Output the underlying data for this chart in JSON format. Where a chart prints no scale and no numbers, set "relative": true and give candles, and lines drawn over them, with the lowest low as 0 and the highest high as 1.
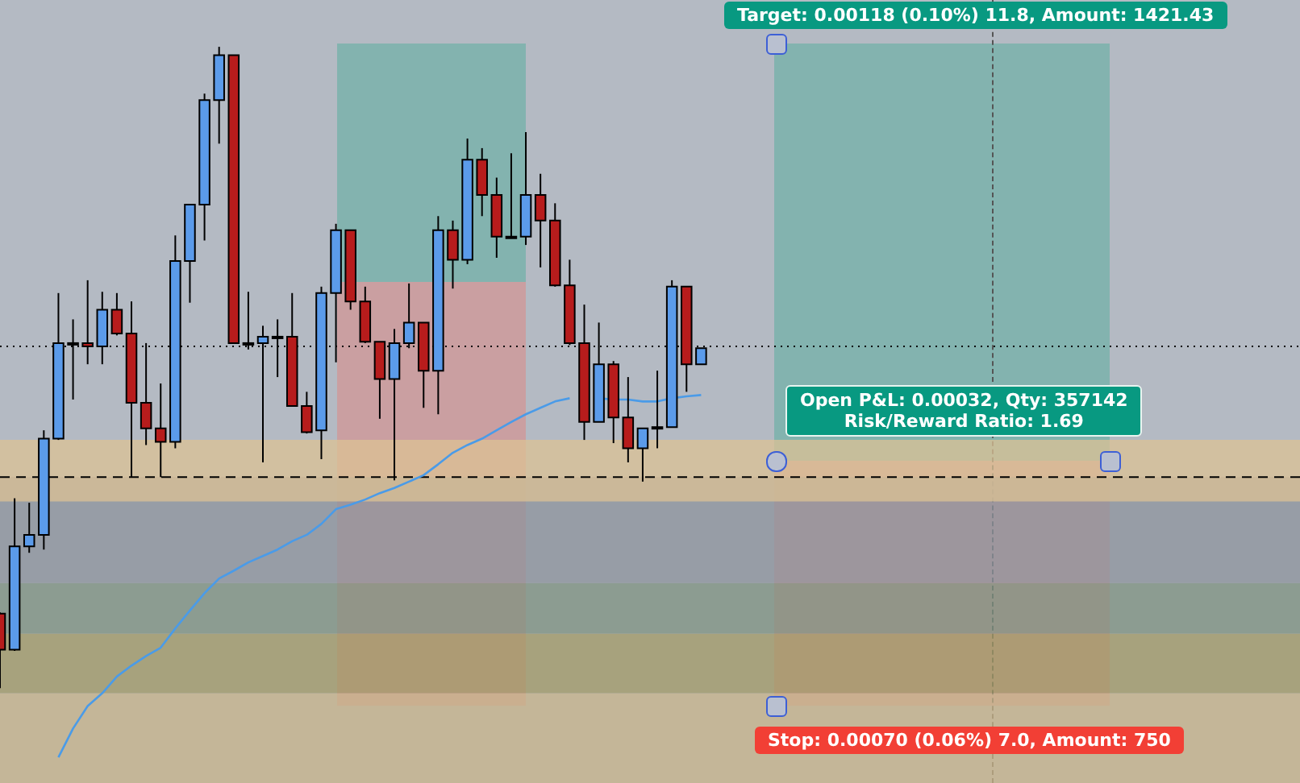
{
  "chart_data": {
    "type": "candlestick",
    "relative": true,
    "categories": [
      null,
      null,
      null,
      null,
      null,
      null,
      null,
      null,
      null,
      null,
      null,
      null,
      null,
      null,
      null,
      null,
      null,
      null,
      null,
      null,
      null,
      null,
      null,
      null,
      null,
      null,
      null,
      null,
      null,
      null,
      null,
      null,
      null,
      null,
      null,
      null,
      null,
      null,
      null,
      null,
      null,
      null,
      null,
      null,
      null,
      null,
      null,
      null,
      null,
      null,
      null,
      null,
      null,
      null,
      null,
      null,
      null,
      null,
      null,
      null,
      null,
      null,
      null,
      null,
      null,
      null,
      null,
      null,
      null,
      null,
      null,
      null,
      null,
      null,
      null,
      null,
      null,
      null,
      null,
      null,
      null,
      null,
      null,
      null,
      null,
      null,
      null,
      null,
      null,
      null
    ],
    "ohlc": [
      [
        0.116,
        0.118,
        0,
        0.06
      ],
      [
        0.06,
        0.296,
        0.058,
        0.221
      ],
      [
        0.221,
        0.289,
        0.211,
        0.239
      ],
      [
        0.239,
        0.402,
        0.216,
        0.389
      ],
      [
        0.389,
        0.616,
        0.387,
        0.538
      ],
      [
        0.538,
        0.575,
        0.45,
        0.538
      ],
      [
        0.538,
        0.636,
        0.505,
        0.533
      ],
      [
        0.533,
        0.618,
        0.505,
        0.59
      ],
      [
        0.59,
        0.616,
        0.55,
        0.553
      ],
      [
        0.553,
        0.603,
        0.329,
        0.445
      ],
      [
        0.445,
        0.538,
        0.379,
        0.405
      ],
      [
        0.405,
        0.475,
        0.329,
        0.384
      ],
      [
        0.384,
        0.706,
        0.374,
        0.666
      ],
      [
        0.666,
        0.754,
        0.601,
        0.754
      ],
      [
        0.754,
        0.927,
        0.698,
        0.917
      ],
      [
        0.917,
        1,
        0.849,
        0.987
      ],
      [
        0.987,
        0.987,
        0.538,
        0.538
      ],
      [
        0.538,
        0.618,
        0.528,
        0.538
      ],
      [
        0.538,
        0.565,
        0.352,
        0.548
      ],
      [
        0.548,
        0.575,
        0.485,
        0.548
      ],
      [
        0.548,
        0.616,
        0.44,
        0.44
      ],
      [
        0.44,
        0.462,
        0.397,
        0.399
      ],
      [
        0.402,
        0.626,
        0.357,
        0.616
      ],
      [
        0.616,
        0.724,
        0.508,
        0.714
      ],
      [
        0.714,
        0.714,
        0.59,
        0.603
      ],
      [
        0.603,
        0.626,
        0.538,
        0.54
      ],
      [
        0.54,
        0.54,
        0.42,
        0.482
      ],
      [
        0.482,
        0.56,
        0.324,
        0.538
      ],
      [
        0.538,
        0.631,
        0.53,
        0.57
      ],
      [
        0.57,
        0.57,
        0.437,
        0.495
      ],
      [
        0.495,
        0.736,
        0.427,
        0.714
      ],
      [
        0.714,
        0.729,
        0.623,
        0.668
      ],
      [
        0.668,
        0.857,
        0.661,
        0.824
      ],
      [
        0.824,
        0.842,
        0.736,
        0.769
      ],
      [
        0.769,
        0.796,
        0.671,
        0.704
      ],
      [
        0.704,
        0.834,
        0.704,
        0.704
      ],
      [
        0.704,
        0.867,
        0.691,
        0.769
      ],
      [
        0.769,
        0.802,
        0.656,
        0.729
      ],
      [
        0.729,
        0.756,
        0.626,
        0.628
      ],
      [
        0.628,
        0.668,
        0.535,
        0.538
      ],
      [
        0.538,
        0.598,
        0.387,
        0.415
      ],
      [
        0.415,
        0.57,
        0.415,
        0.505
      ],
      [
        0.505,
        0.51,
        0.382,
        0.422
      ],
      [
        0.422,
        0.485,
        0.352,
        0.374
      ],
      [
        0.374,
        0.405,
        0.322,
        0.405
      ],
      [
        0.407,
        0.495,
        0.374,
        0.407
      ],
      [
        0.407,
        0.636,
        0.407,
        0.626
      ],
      [
        0.626,
        0.626,
        0.462,
        0.505
      ],
      [
        0.505,
        0.53,
        0.505,
        0.53
      ],
      null,
      null,
      null,
      null,
      null,
      null,
      null,
      null,
      null,
      null,
      null,
      null,
      null,
      null,
      null,
      null,
      null,
      null,
      null,
      null,
      null,
      null,
      null,
      null,
      null,
      null,
      null,
      null,
      null,
      null,
      null,
      null,
      null,
      null,
      null,
      null,
      null,
      null,
      null,
      null,
      null
    ],
    "colors": [
      "#b71c1c",
      "#5b9bea",
      "#5b9bea",
      "#5b9bea",
      "#5b9bea",
      "#5b9bea",
      "#b71c1c",
      "#5b9bea",
      "#b71c1c",
      "#b71c1c",
      "#b71c1c",
      "#b71c1c",
      "#5b9bea",
      "#5b9bea",
      "#5b9bea",
      "#5b9bea",
      "#b71c1c",
      "#5b9bea",
      "#5b9bea",
      "#5b9bea",
      "#b71c1c",
      "#b71c1c",
      "#5b9bea",
      "#5b9bea",
      "#b71c1c",
      "#b71c1c",
      "#b71c1c",
      "#5b9bea",
      "#5b9bea",
      "#b71c1c",
      "#5b9bea",
      "#b71c1c",
      "#5b9bea",
      "#b71c1c",
      "#b71c1c",
      "#5b9bea",
      "#5b9bea",
      "#b71c1c",
      "#b71c1c",
      "#b71c1c",
      "#b71c1c",
      "#5b9bea",
      "#b71c1c",
      "#b71c1c",
      "#5b9bea",
      "#5b9bea",
      "#5b9bea",
      "#b71c1c",
      "#5b9bea",
      null,
      null,
      null,
      null,
      null,
      null,
      null,
      null,
      null,
      null,
      null,
      null,
      null,
      null,
      null,
      null,
      null,
      null,
      null,
      null,
      null,
      null,
      null,
      null,
      null,
      null,
      null,
      null,
      null,
      null,
      null,
      null,
      null,
      null,
      null,
      null,
      null,
      null,
      null,
      null,
      null
    ],
    "series": [
      {
        "type": "line",
        "color": "#4a9be8",
        "values": [
          null,
          null,
          null,
          null,
          -0.108,
          -0.063,
          -0.028,
          -0.008,
          0.018,
          0.035,
          0.05,
          0.063,
          0.093,
          0.121,
          0.148,
          0.171,
          0.183,
          0.196,
          0.206,
          0.216,
          0.229,
          0.239,
          0.256,
          0.279,
          0.286,
          0.294,
          0.304,
          0.312,
          0.322,
          0.332,
          0.349,
          0.367,
          0.379,
          0.389,
          0.402,
          0.415,
          0.427,
          0.437,
          0.447,
          0.452,
          null,
          0.452,
          0.45,
          0.45,
          0.447,
          0.447,
          0.452,
          0.455,
          0.457,
          null,
          null,
          null,
          null,
          null,
          null,
          null,
          null,
          null,
          null,
          null,
          null,
          null,
          null,
          null,
          null,
          null,
          null,
          null,
          null,
          null,
          null,
          null,
          null,
          null,
          null,
          null,
          null,
          null,
          null,
          null,
          null,
          null,
          null,
          null,
          null,
          null,
          null,
          null,
          null,
          null
        ]
      }
    ],
    "bands": [
      {
        "axis": "y",
        "from": -0.148,
        "to": -0.008,
        "color": "#c9b48a"
      },
      {
        "axis": "y",
        "from": -0.008,
        "to": 0.085,
        "color": "#a39a66"
      },
      {
        "axis": "y",
        "from": 0.085,
        "to": 0.164,
        "color": "#7f9180"
      },
      {
        "axis": "y",
        "from": 0.164,
        "to": 0.329,
        "color": "#8e939c"
      },
      {
        "axis": "y",
        "from": 0.291,
        "to": 0.387,
        "color": "#dcc294"
      }
    ],
    "ref_lines": [
      {
        "axis": "y",
        "value": 0.533,
        "line_style": "dotted",
        "color": "#000000"
      },
      {
        "axis": "y",
        "value": 0.329,
        "line_style": "dashed",
        "color": "#000000"
      }
    ],
    "annotations": [
      "Target: 0.00118 (0.10%) 11.8, Amount: 1421.43",
      "Open P&L: 0.00032, Qty: 357142\nRisk/Reward Ratio: 1.69",
      "Stop: 0.00070 (0.06%) 7.0, Amount: 750"
    ]
  }
}
